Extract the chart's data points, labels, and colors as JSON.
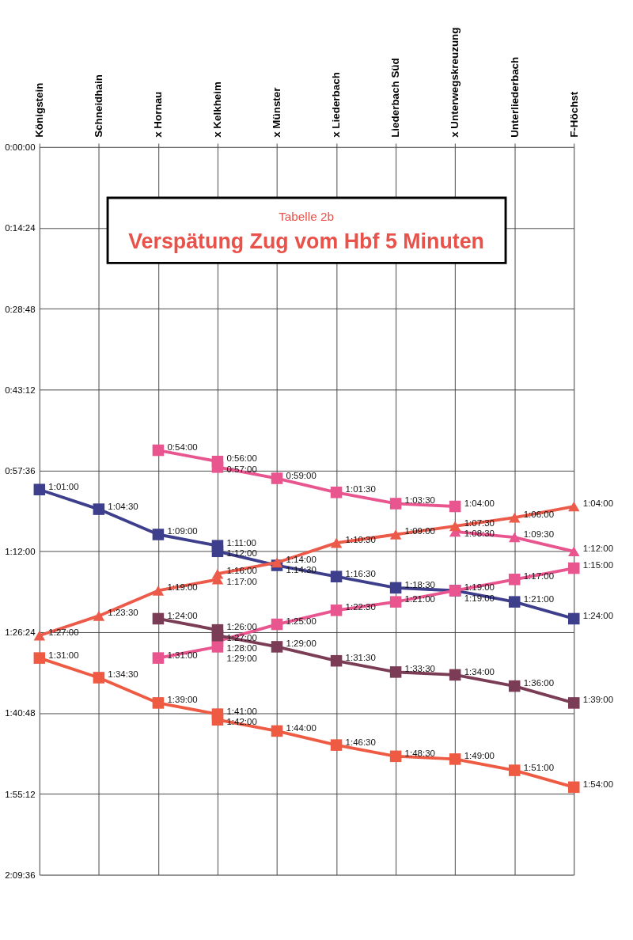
{
  "chart_data": {
    "type": "line",
    "title": "Verspätung Zug vom Hbf 5 Minuten",
    "subtitle": "Tabelle 2b",
    "categories": [
      "Königstein",
      "Schneidhain",
      "x Hornau",
      "x Kelkheim",
      "x Münster",
      "x Liederbach",
      "Liederbach Süd",
      "x Unterwegskreuzung",
      "Unterliederbach",
      "F-Höchst"
    ],
    "ylim": [
      129.6,
      0
    ],
    "yticks": [
      {
        "value": 0,
        "label": "0:00:00"
      },
      {
        "value": 14.4,
        "label": "0:14:24"
      },
      {
        "value": 28.8,
        "label": "0:28:48"
      },
      {
        "value": 43.2,
        "label": "0:43:12"
      },
      {
        "value": 57.6,
        "label": "0:57:36"
      },
      {
        "value": 72,
        "label": "1:12:00"
      },
      {
        "value": 86.4,
        "label": "1:26:24"
      },
      {
        "value": 100.8,
        "label": "1:40:48"
      },
      {
        "value": 115.2,
        "label": "1:55:12"
      },
      {
        "value": 129.6,
        "label": "2:09:36"
      }
    ],
    "grid": true,
    "line_style": "solid",
    "series": [
      {
        "color": "#3e3f8c",
        "marker": "square",
        "x": [
          "Königstein",
          "Schneidhain",
          "x Hornau",
          "x Kelkheim",
          "x Kelkheim",
          "x Münster",
          "x Liederbach",
          "Liederbach Süd",
          "x Unterwegskreuzung",
          "Unterliederbach",
          "F-Höchst"
        ],
        "values": [
          61,
          64.5,
          69,
          71,
          72,
          74.5,
          76.5,
          78.5,
          79,
          81,
          84
        ],
        "value_labels": [
          "1:01:00",
          "1:04:30",
          "1:09:00",
          "1:11:00",
          "1:12:00",
          "1:14:30",
          "1:16:30",
          "1:18:30",
          "1:19:00",
          "1:21:00",
          "1:24:00"
        ]
      },
      {
        "color": "#e9558f",
        "marker": "square",
        "x": [
          "x Hornau",
          "x Kelkheim",
          "x Kelkheim",
          "x Münster",
          "x Liederbach",
          "Liederbach Süd",
          "x Unterwegskreuzung"
        ],
        "values": [
          54,
          56,
          57,
          59,
          61.5,
          63.5,
          64
        ],
        "value_labels": [
          "0:54:00",
          "0:56:00",
          "0:57:00",
          "0:59:00",
          "1:01:30",
          "1:03:30",
          "1:04:00"
        ]
      },
      {
        "color": "#e9558f",
        "marker": "triangle",
        "x": [
          "x Unterwegskreuzung",
          "Unterliederbach",
          "F-Höchst"
        ],
        "values": [
          68.5,
          69.5,
          72
        ],
        "value_labels": [
          "1:08:30",
          "1:09:30",
          "1:12:00"
        ]
      },
      {
        "color": "#ec5a4a",
        "marker": "triangle",
        "x": [
          "Königstein",
          "Schneidhain",
          "x Hornau",
          "x Kelkheim",
          "x Kelkheim",
          "x Münster",
          "x Liederbach",
          "Liederbach Süd",
          "x Unterwegskreuzung",
          "Unterliederbach",
          "F-Höchst"
        ],
        "values": [
          87,
          83.5,
          79,
          77,
          76,
          74,
          70.5,
          69,
          67.5,
          66,
          64
        ],
        "value_labels": [
          "1:27:00",
          "1:23:30",
          "1:19:00",
          "1:17:00",
          "1:16:00",
          "1:14:00",
          "1:10:30",
          "1:09:00",
          "1:07:30",
          "1:06:00",
          "1:04:00"
        ]
      },
      {
        "color": "#e9558f",
        "marker": "square",
        "x": [
          "x Hornau",
          "x Kelkheim",
          "x Kelkheim",
          "x Münster",
          "x Liederbach",
          "Liederbach Süd",
          "x Unterwegskreuzung",
          "Unterliederbach",
          "F-Höchst"
        ],
        "values": [
          91,
          89,
          88,
          85,
          82.5,
          81,
          79,
          77,
          75
        ],
        "value_labels": [
          "1:31:00",
          "1:29:00",
          "1:28:00",
          "1:25:00",
          "1:22:30",
          "1:21:00",
          "1:19:00",
          "1:17:00",
          "1:15:00"
        ]
      },
      {
        "color": "#7b3d55",
        "marker": "square",
        "x": [
          "x Hornau",
          "x Kelkheim",
          "x Kelkheim",
          "x Münster",
          "x Liederbach",
          "Liederbach Süd",
          "x Unterwegskreuzung",
          "Unterliederbach",
          "F-Höchst"
        ],
        "values": [
          84,
          86,
          87,
          89,
          91.5,
          93.5,
          94,
          96,
          99
        ],
        "value_labels": [
          "1:24:00",
          "1:26:00",
          "1:27:00",
          "1:29:00",
          "1:31:30",
          "1:33:30",
          "1:34:00",
          "1:36:00",
          "1:39:00"
        ]
      },
      {
        "color": "#ee5a42",
        "marker": "square",
        "x": [
          "Königstein",
          "Schneidhain",
          "x Hornau",
          "x Kelkheim",
          "x Kelkheim",
          "x Münster",
          "x Liederbach",
          "Liederbach Süd",
          "x Unterwegskreuzung",
          "Unterliederbach",
          "F-Höchst"
        ],
        "values": [
          91,
          94.5,
          99,
          101,
          102,
          104,
          106.5,
          108.5,
          109,
          111,
          114
        ],
        "value_labels": [
          "1:31:00",
          "1:34:30",
          "1:39:00",
          "1:41:00",
          "1:42:00",
          "1:44:00",
          "1:46:30",
          "1:48:30",
          "1:49:00",
          "1:51:00",
          "1:54:00"
        ]
      }
    ]
  }
}
